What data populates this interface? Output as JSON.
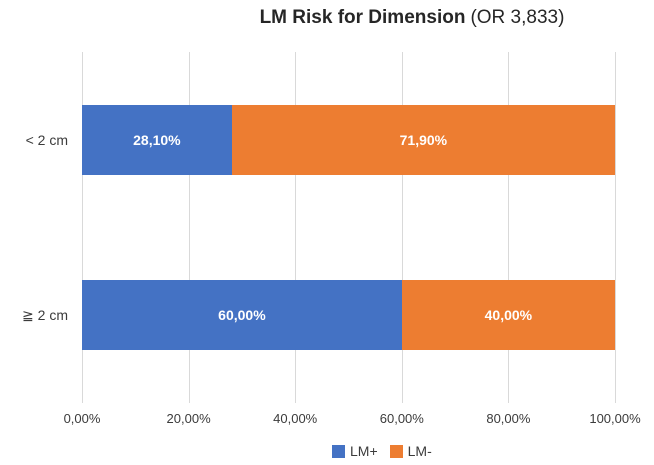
{
  "chart_data": {
    "type": "bar",
    "orientation": "horizontal",
    "stacked": true,
    "title": "LM Risk for Dimension (OR 3,833)",
    "title_bold": "LM Risk for Dimension",
    "title_suffix": "(OR 3,833)",
    "categories": [
      "< 2 cm",
      "≧ 2 cm"
    ],
    "series": [
      {
        "name": "LM+",
        "color": "#4472C4",
        "values": [
          28.1,
          60.0
        ],
        "labels": [
          "28,10%",
          "60,00%"
        ]
      },
      {
        "name": "LM-",
        "color": "#ED7D31",
        "values": [
          71.9,
          40.0
        ],
        "labels": [
          "71,90%",
          "40,00%"
        ]
      }
    ],
    "x_axis": {
      "range": [
        0,
        100
      ],
      "tick_values": [
        0,
        20,
        40,
        60,
        80,
        100
      ],
      "tick_labels": [
        "0,00%",
        "20,00%",
        "40,00%",
        "60,00%",
        "80,00%",
        "100,00%"
      ]
    },
    "legend": {
      "position": "bottom",
      "items": [
        "LM+",
        "LM-"
      ]
    },
    "grid": true,
    "colors": {
      "gridline": "#D9D9D9",
      "data_label": "#FFFFFF",
      "axis_text": "#3B3B3B",
      "title_text": "#262626"
    }
  }
}
